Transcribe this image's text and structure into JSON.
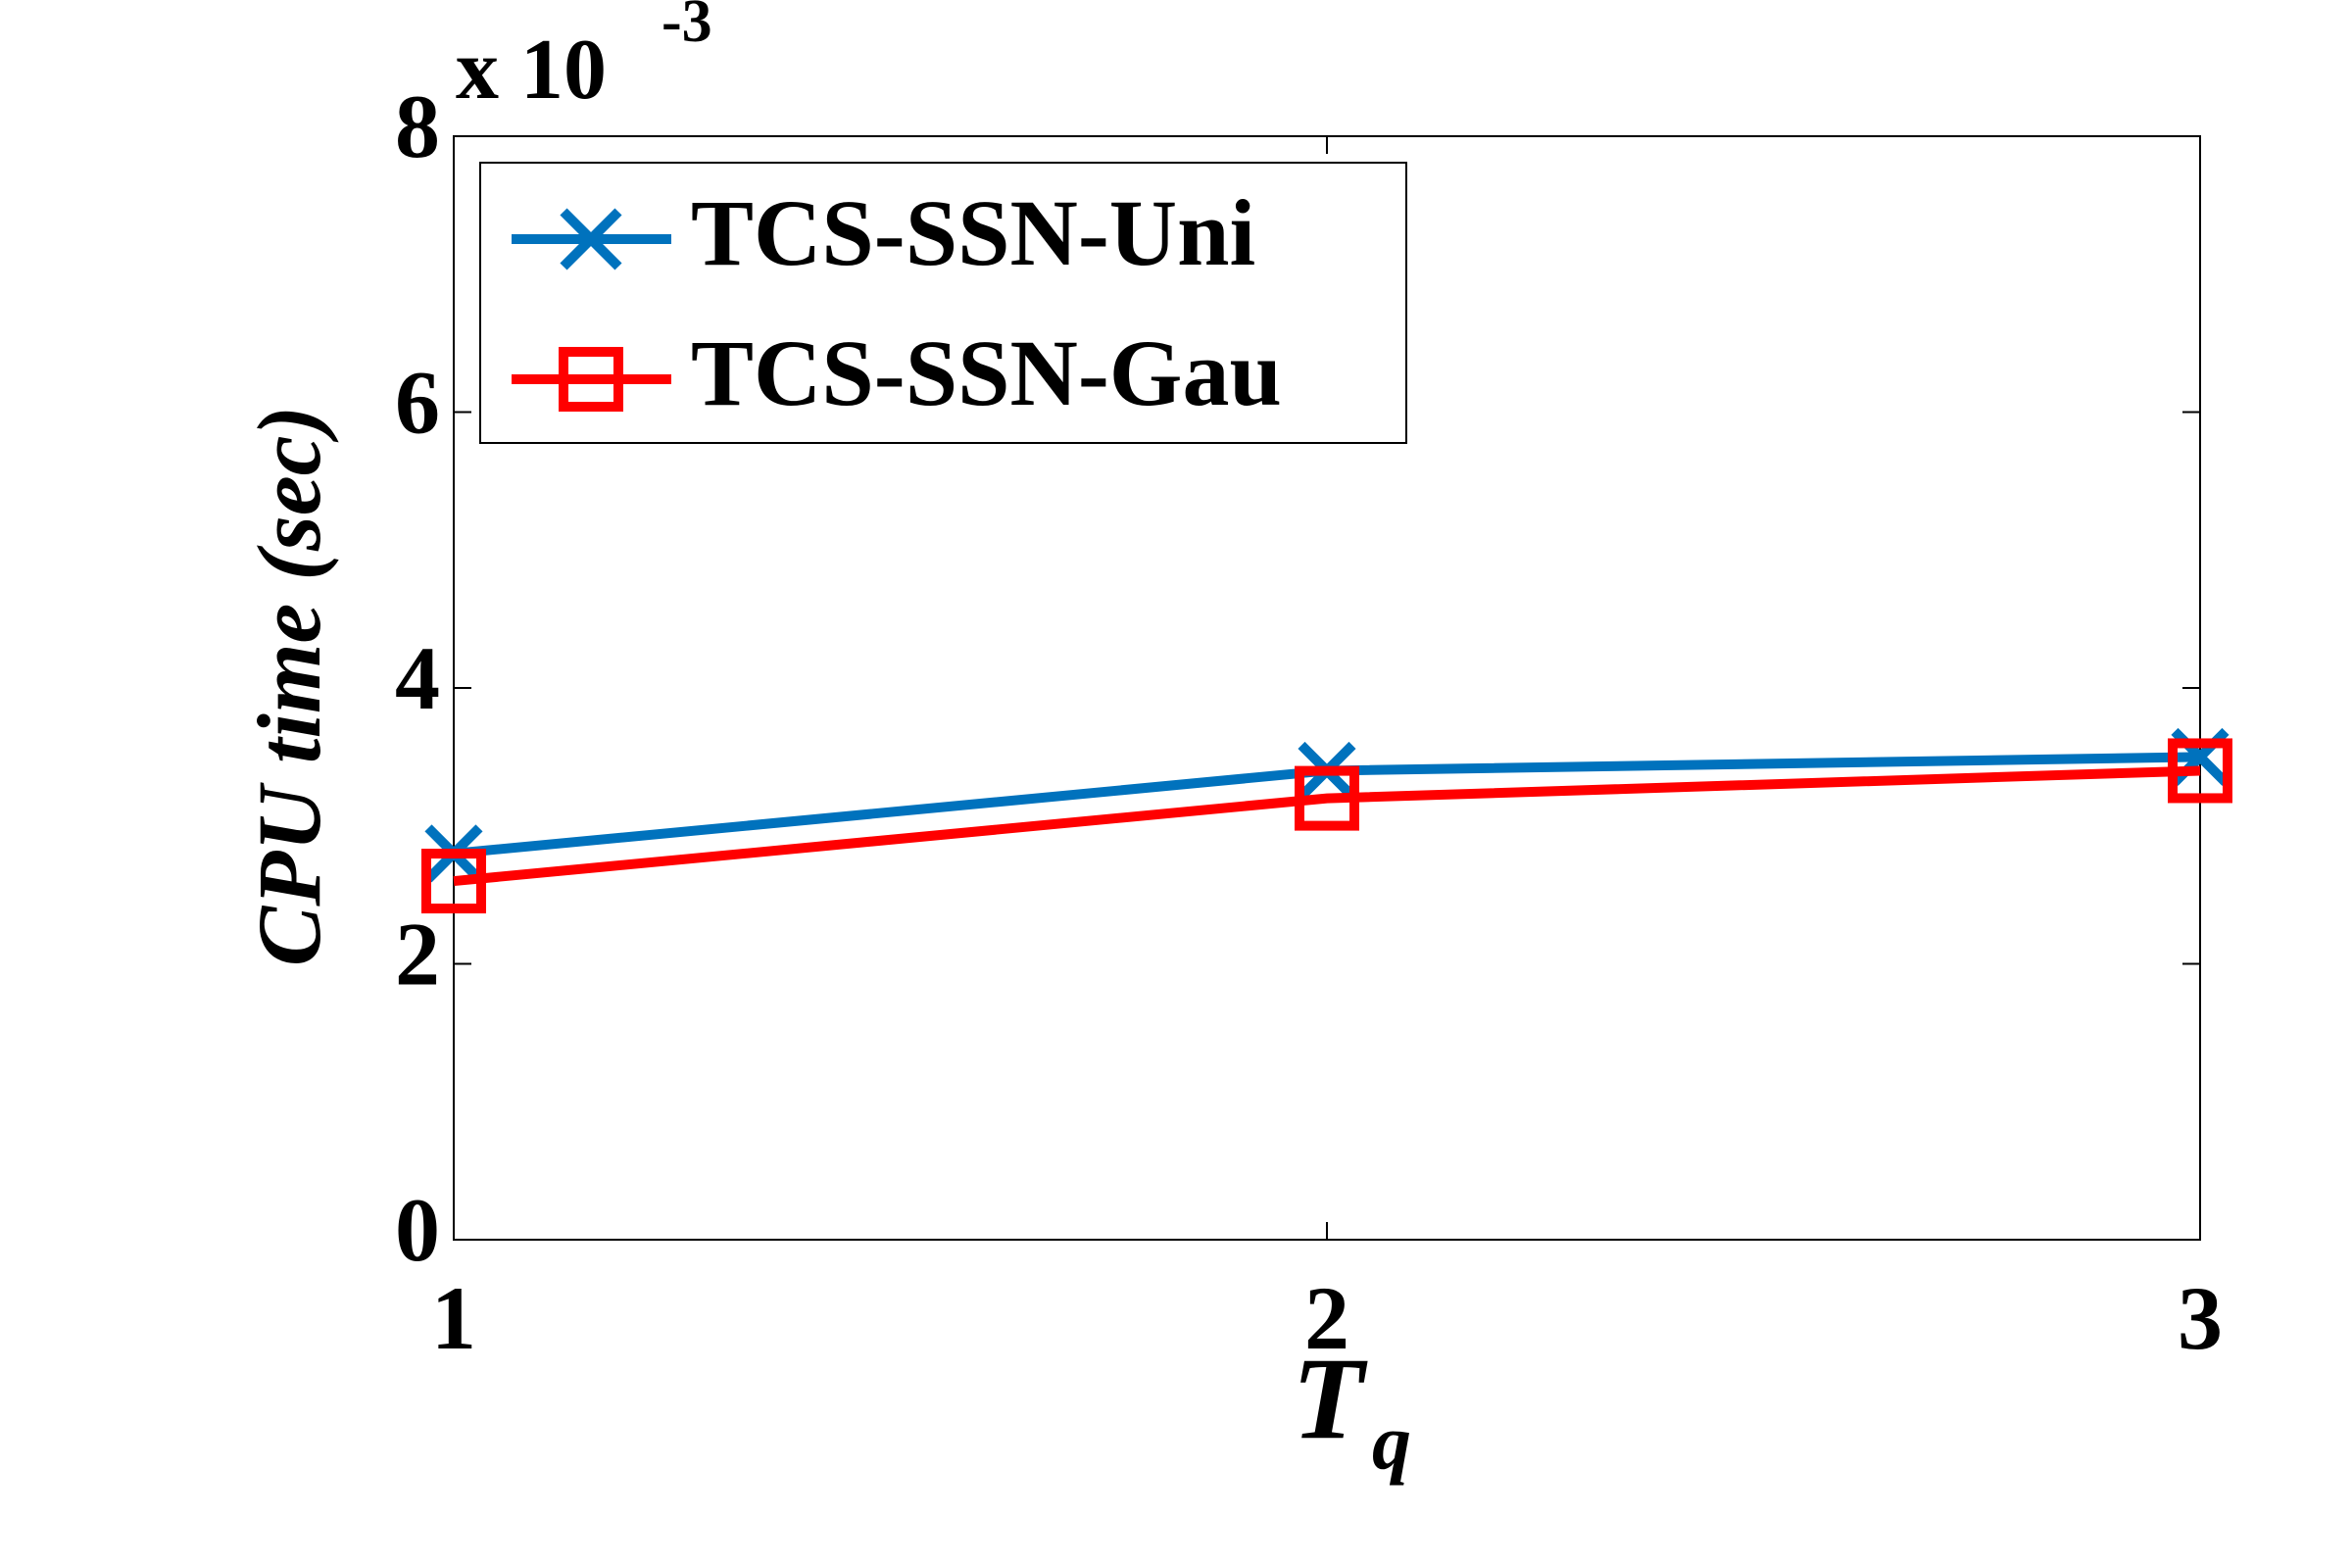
{
  "chart_data": {
    "type": "line",
    "xlabel": "T",
    "xlabel_subscript": "q",
    "ylabel": "CPU time (sec)",
    "y_multiplier": {
      "base": "x 10",
      "exponent": "-3"
    },
    "x": [
      1,
      2,
      3
    ],
    "series": [
      {
        "name": "TCS-SSN-Uni",
        "color": "#0072bd",
        "marker": "x",
        "values": [
          2.8,
          3.4,
          3.5
        ]
      },
      {
        "name": "TCS-SSN-Gau",
        "color": "#ff0000",
        "marker": "square",
        "values": [
          2.6,
          3.2,
          3.4
        ]
      }
    ],
    "xlim": [
      1,
      3
    ],
    "xticks": [
      1,
      2,
      3
    ],
    "ylim": [
      0,
      8
    ],
    "yticks": [
      0,
      2,
      4,
      6,
      8
    ],
    "grid": false,
    "legend": "upper left"
  }
}
